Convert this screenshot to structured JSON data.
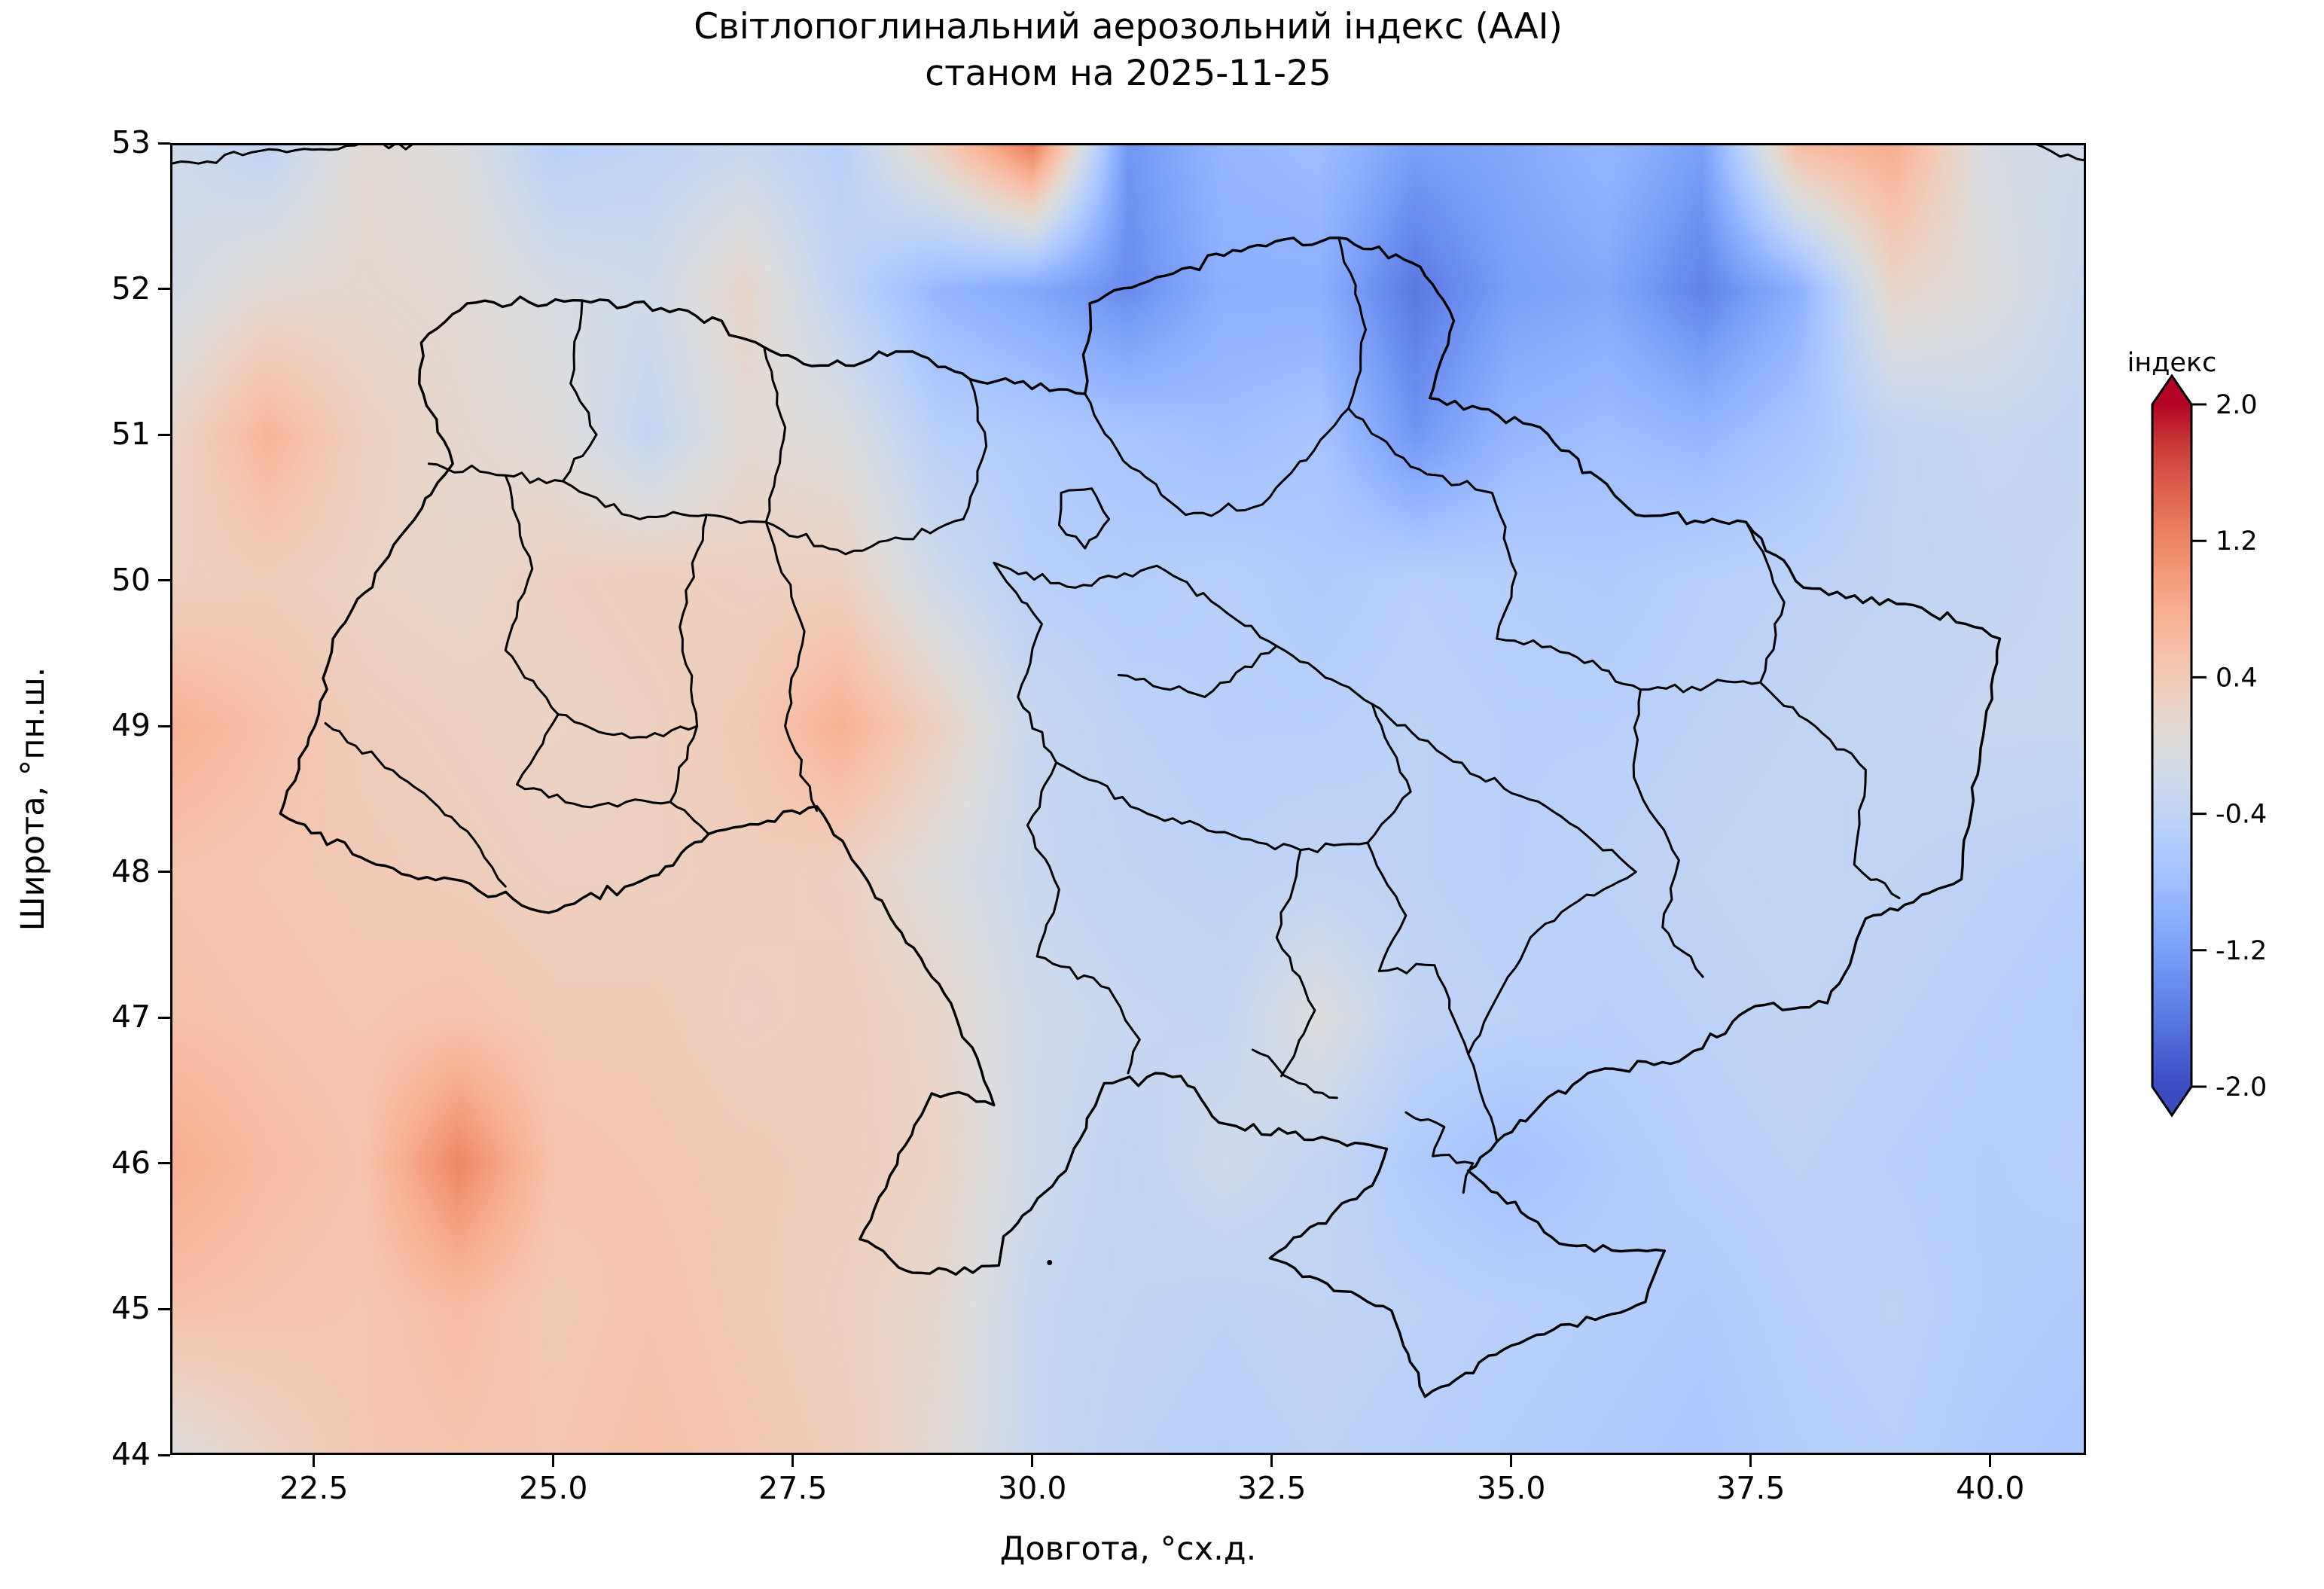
{
  "figure": {
    "title_line1": "Світлопоглинальний аерозольний індекс (AAI)",
    "title_line2": "станом на 2025-11-25",
    "background": "#ffffff"
  },
  "axes": {
    "xlabel": "Довгота, °сх.д.",
    "ylabel": "Широта, °пн.ш.",
    "xlim": [
      21,
      41
    ],
    "ylim": [
      44,
      53
    ],
    "xticks": [
      22.5,
      25.0,
      27.5,
      30.0,
      32.5,
      35.0,
      37.5,
      40.0
    ],
    "xtick_labels": [
      "22.5",
      "25.0",
      "27.5",
      "30.0",
      "32.5",
      "35.0",
      "37.5",
      "40.0"
    ],
    "yticks": [
      53,
      52,
      51,
      50,
      49,
      48,
      47,
      46,
      45,
      44
    ],
    "ytick_labels": [
      "53",
      "52",
      "51",
      "50",
      "49",
      "48",
      "47",
      "46",
      "45",
      "44"
    ]
  },
  "colorbar": {
    "title": "індекс",
    "vmin": -2.0,
    "vmax": 2.0,
    "tick_values": [
      2.0,
      1.2,
      0.4,
      -0.4,
      -1.2,
      -2.0
    ],
    "tick_labels": [
      "2.0",
      "1.2",
      "0.4",
      "-0.4",
      "-1.2",
      "-2.0"
    ],
    "extend": "both",
    "over_color": "#b40426",
    "under_color": "#3b4cc0",
    "colormap_name": "coolwarm",
    "colormap_anchors": [
      "#3b4cc0",
      "#4d68d7",
      "#6282ea",
      "#779af6",
      "#8db0fe",
      "#a3c2ff",
      "#b8d0f9",
      "#ccd9ee",
      "#dddddd",
      "#ecd3c5",
      "#f5c4ad",
      "#f7b194",
      "#f49a7a",
      "#ec7f63",
      "#de604d",
      "#cb3e38",
      "#b40426"
    ]
  },
  "chart_data": {
    "type": "heatmap",
    "title": "Світлопоглинальний аерозольний індекс (AAI) станом на 2025-11-25",
    "date": "2025-11-25",
    "variable": "AAI (absorbing aerosol index)",
    "xlabel": "Довгота, °сх.д.",
    "ylabel": "Широта, °пн.ш.",
    "x_lon": [
      21,
      22,
      23,
      24,
      25,
      26,
      27,
      28,
      29,
      30,
      31,
      32,
      33,
      34,
      35,
      36,
      37,
      38,
      39,
      40,
      41
    ],
    "y_lat": [
      53,
      52,
      51,
      50,
      49,
      48,
      47,
      46,
      45,
      44
    ],
    "values": [
      [
        -0.2,
        -0.4,
        0.1,
        0.0,
        -0.5,
        -0.4,
        -0.3,
        -0.5,
        0.3,
        1.3,
        -1.3,
        -0.9,
        -0.8,
        -1.2,
        -1.1,
        -0.9,
        -1.2,
        0.6,
        0.8,
        -0.1,
        -0.2
      ],
      [
        -0.15,
        0.1,
        0.15,
        0.1,
        -0.1,
        -0.2,
        0.2,
        -0.4,
        -0.9,
        -1.1,
        -1.4,
        -1.0,
        -1.0,
        -1.6,
        -1.2,
        -1.1,
        -1.5,
        -1.0,
        0.2,
        0.0,
        -0.3
      ],
      [
        0.2,
        0.7,
        0.3,
        0.15,
        0.05,
        -0.35,
        0.1,
        0.0,
        -0.5,
        -0.6,
        -0.7,
        -0.8,
        -0.7,
        -1.3,
        -0.9,
        -0.8,
        -0.9,
        -0.7,
        -0.4,
        -0.3,
        -0.35
      ],
      [
        0.3,
        0.35,
        0.25,
        0.2,
        0.3,
        0.35,
        0.3,
        0.3,
        -0.2,
        -0.5,
        -0.55,
        -0.5,
        -0.6,
        -0.5,
        -0.55,
        -0.6,
        -0.5,
        -0.45,
        -0.4,
        -0.35,
        -0.3
      ],
      [
        0.75,
        0.55,
        0.35,
        0.3,
        0.25,
        0.3,
        0.4,
        0.75,
        0.3,
        -0.3,
        -0.45,
        -0.5,
        -0.5,
        -0.45,
        -0.5,
        -0.5,
        -0.45,
        -0.4,
        -0.35,
        -0.3,
        -0.3
      ],
      [
        0.5,
        0.45,
        0.4,
        0.35,
        0.3,
        0.3,
        0.35,
        0.3,
        0.0,
        -0.3,
        -0.4,
        -0.45,
        -0.4,
        -0.45,
        -0.5,
        -0.45,
        -0.4,
        -0.35,
        -0.4,
        -0.45,
        -0.5
      ],
      [
        0.55,
        0.5,
        0.45,
        0.5,
        0.4,
        0.4,
        0.3,
        0.35,
        0.2,
        -0.2,
        -0.3,
        -0.35,
        0.0,
        -0.4,
        -0.45,
        -0.5,
        -0.45,
        -0.4,
        -0.45,
        -0.5,
        -0.55
      ],
      [
        0.8,
        0.6,
        0.5,
        1.2,
        0.5,
        0.45,
        0.4,
        0.35,
        0.25,
        -0.2,
        -0.4,
        -0.2,
        -0.35,
        -0.6,
        -0.75,
        -0.6,
        -0.5,
        -0.45,
        -0.5,
        -0.55,
        -0.5
      ],
      [
        0.55,
        0.5,
        0.45,
        0.6,
        0.4,
        0.5,
        0.4,
        0.3,
        0.15,
        -0.3,
        -0.4,
        -0.45,
        -0.4,
        -0.45,
        -0.5,
        -0.55,
        -0.6,
        -0.5,
        -0.45,
        -0.55,
        -0.6
      ],
      [
        0.0,
        0.25,
        0.45,
        0.5,
        0.45,
        0.55,
        0.45,
        0.35,
        0.1,
        -0.3,
        -0.45,
        -0.5,
        -0.45,
        -0.5,
        -0.55,
        -0.6,
        -0.65,
        -0.55,
        -0.5,
        -0.6,
        -0.65
      ]
    ],
    "map_overlay": {
      "outline": [
        [
          22.15,
          48.4
        ],
        [
          22.55,
          49.08
        ],
        [
          22.7,
          49.6
        ],
        [
          23.4,
          50.3
        ],
        [
          23.95,
          50.8
        ],
        [
          23.6,
          51.35
        ],
        [
          23.62,
          51.63
        ],
        [
          24.1,
          51.9
        ],
        [
          25.3,
          51.92
        ],
        [
          26.4,
          51.85
        ],
        [
          27.2,
          51.6
        ],
        [
          27.7,
          51.47
        ],
        [
          28.75,
          51.57
        ],
        [
          29.35,
          51.38
        ],
        [
          30.55,
          51.28
        ],
        [
          30.6,
          51.9
        ],
        [
          31.3,
          52.08
        ],
        [
          32.35,
          52.3
        ],
        [
          33.2,
          52.35
        ],
        [
          34.05,
          52.15
        ],
        [
          34.4,
          51.78
        ],
        [
          34.15,
          51.25
        ],
        [
          35.3,
          51.05
        ],
        [
          36.3,
          50.45
        ],
        [
          37.45,
          50.4
        ],
        [
          38.05,
          49.95
        ],
        [
          39.2,
          49.83
        ],
        [
          40.1,
          49.6
        ],
        [
          39.9,
          48.85
        ],
        [
          39.7,
          47.95
        ],
        [
          38.7,
          47.68
        ],
        [
          38.3,
          47.1
        ],
        [
          37.55,
          47.08
        ],
        [
          36.75,
          46.7
        ],
        [
          35.8,
          46.62
        ],
        [
          34.85,
          46.15
        ],
        [
          34.55,
          45.95
        ],
        [
          35.5,
          45.45
        ],
        [
          36.6,
          45.4
        ],
        [
          36.4,
          45.05
        ],
        [
          35.0,
          44.75
        ],
        [
          34.1,
          44.4
        ],
        [
          33.75,
          44.99
        ],
        [
          32.48,
          45.35
        ],
        [
          33.55,
          45.85
        ],
        [
          33.7,
          46.1
        ],
        [
          33.2,
          46.15
        ],
        [
          31.95,
          46.28
        ],
        [
          31.55,
          46.6
        ],
        [
          30.75,
          46.55
        ],
        [
          30.35,
          45.95
        ],
        [
          29.7,
          45.5
        ],
        [
          29.65,
          45.3
        ],
        [
          28.75,
          45.25
        ],
        [
          28.2,
          45.48
        ],
        [
          28.95,
          46.48
        ],
        [
          29.6,
          46.4
        ],
        [
          29.15,
          47.1
        ],
        [
          27.75,
          48.45
        ],
        [
          26.62,
          48.26
        ],
        [
          26.1,
          47.98
        ],
        [
          24.95,
          47.72
        ],
        [
          23.95,
          47.95
        ],
        [
          23.15,
          48.05
        ]
      ],
      "internal": [
        [
          [
            25.3,
            51.92
          ],
          [
            25.18,
            51.35
          ],
          [
            25.45,
            51.0
          ],
          [
            25.1,
            50.68
          ]
        ],
        [
          [
            23.7,
            50.8
          ],
          [
            24.5,
            50.72
          ],
          [
            25.1,
            50.68
          ],
          [
            25.9,
            50.42
          ],
          [
            26.6,
            50.45
          ],
          [
            27.22,
            50.4
          ]
        ],
        [
          [
            27.2,
            51.6
          ],
          [
            27.42,
            51.05
          ],
          [
            27.22,
            50.4
          ]
        ],
        [
          [
            29.35,
            51.38
          ],
          [
            29.52,
            50.92
          ],
          [
            29.28,
            50.42
          ]
        ],
        [
          [
            27.22,
            50.4
          ],
          [
            28.05,
            50.18
          ],
          [
            29.28,
            50.42
          ]
        ],
        [
          [
            24.5,
            50.72
          ],
          [
            24.78,
            50.08
          ],
          [
            24.5,
            49.52
          ],
          [
            25.05,
            49.08
          ],
          [
            24.62,
            48.6
          ]
        ],
        [
          [
            26.6,
            50.45
          ],
          [
            26.32,
            49.68
          ],
          [
            26.5,
            49.0
          ],
          [
            26.22,
            48.48
          ]
        ],
        [
          [
            27.22,
            50.4
          ],
          [
            27.62,
            49.65
          ],
          [
            27.42,
            49.0
          ],
          [
            27.75,
            48.42
          ]
        ],
        [
          [
            25.05,
            49.08
          ],
          [
            25.8,
            48.92
          ],
          [
            26.5,
            49.0
          ]
        ],
        [
          [
            24.62,
            48.6
          ],
          [
            25.3,
            48.45
          ],
          [
            26.22,
            48.48
          ],
          [
            26.62,
            48.26
          ]
        ],
        [
          [
            22.62,
            49.02
          ],
          [
            23.4,
            48.65
          ],
          [
            24.1,
            48.28
          ],
          [
            24.5,
            47.9
          ]
        ],
        [
          [
            29.6,
            50.12
          ],
          [
            30.1,
            49.7
          ],
          [
            29.85,
            49.2
          ],
          [
            30.25,
            48.75
          ],
          [
            29.95,
            48.32
          ],
          [
            30.28,
            47.88
          ],
          [
            30.05,
            47.42
          ]
        ],
        [
          [
            29.6,
            50.12
          ],
          [
            30.45,
            49.95
          ],
          [
            31.3,
            50.1
          ],
          [
            31.95,
            49.82
          ]
        ],
        [
          [
            31.95,
            49.82
          ],
          [
            32.55,
            49.55
          ],
          [
            33.55,
            49.15
          ],
          [
            34.3,
            48.8
          ],
          [
            35.1,
            48.52
          ],
          [
            35.7,
            48.3
          ],
          [
            36.3,
            48.0
          ]
        ],
        [
          [
            30.55,
            51.28
          ],
          [
            30.95,
            50.82
          ],
          [
            31.6,
            50.45
          ],
          [
            32.4,
            50.52
          ],
          [
            33.3,
            51.18
          ]
        ],
        [
          [
            33.2,
            52.35
          ],
          [
            33.48,
            51.72
          ],
          [
            33.3,
            51.18
          ],
          [
            33.95,
            50.78
          ]
        ],
        [
          [
            33.95,
            50.78
          ],
          [
            34.8,
            50.6
          ],
          [
            35.05,
            50.05
          ],
          [
            34.85,
            49.6
          ]
        ],
        [
          [
            34.85,
            49.6
          ],
          [
            35.6,
            49.5
          ],
          [
            36.35,
            49.25
          ],
          [
            37.6,
            49.3
          ]
        ],
        [
          [
            37.45,
            50.4
          ],
          [
            37.85,
            49.85
          ],
          [
            37.6,
            49.3
          ]
        ],
        [
          [
            37.6,
            49.3
          ],
          [
            38.25,
            48.95
          ],
          [
            38.7,
            48.7
          ],
          [
            38.58,
            48.05
          ],
          [
            39.05,
            47.82
          ]
        ],
        [
          [
            36.35,
            49.25
          ],
          [
            36.28,
            48.65
          ],
          [
            36.75,
            48.08
          ],
          [
            36.58,
            47.62
          ],
          [
            37.0,
            47.28
          ]
        ],
        [
          [
            36.3,
            48.0
          ],
          [
            35.7,
            47.8
          ],
          [
            35.2,
            47.55
          ],
          [
            34.9,
            47.2
          ],
          [
            34.55,
            46.75
          ],
          [
            34.85,
            46.15
          ]
        ],
        [
          [
            30.9,
            49.35
          ],
          [
            31.8,
            49.2
          ],
          [
            32.55,
            49.55
          ]
        ],
        [
          [
            30.25,
            48.75
          ],
          [
            31.2,
            48.4
          ],
          [
            32.1,
            48.25
          ],
          [
            32.8,
            48.15
          ],
          [
            33.5,
            48.2
          ]
        ],
        [
          [
            32.8,
            48.15
          ],
          [
            32.55,
            47.55
          ],
          [
            32.95,
            47.05
          ],
          [
            32.6,
            46.6
          ]
        ],
        [
          [
            33.55,
            49.15
          ],
          [
            33.95,
            48.55
          ],
          [
            33.5,
            48.2
          ],
          [
            33.9,
            47.7
          ],
          [
            33.62,
            47.32
          ],
          [
            34.2,
            47.36
          ],
          [
            34.55,
            46.75
          ]
        ],
        [
          [
            30.05,
            47.42
          ],
          [
            30.8,
            47.2
          ],
          [
            31.12,
            46.85
          ],
          [
            31.0,
            46.62
          ]
        ],
        [
          [
            30.3,
            50.6
          ],
          [
            30.62,
            50.63
          ],
          [
            30.8,
            50.42
          ],
          [
            30.55,
            50.22
          ],
          [
            30.28,
            50.38
          ],
          [
            30.3,
            50.6
          ]
        ],
        [
          [
            33.9,
            46.35
          ],
          [
            34.3,
            46.25
          ],
          [
            34.18,
            46.05
          ],
          [
            34.6,
            46.0
          ],
          [
            34.5,
            45.8
          ]
        ],
        [
          [
            32.3,
            46.78
          ],
          [
            32.7,
            46.58
          ],
          [
            33.18,
            46.45
          ]
        ],
        [
          [
            21.02,
            52.86
          ],
          [
            22.4,
            52.96
          ],
          [
            23.9,
            53.0
          ]
        ],
        [
          [
            40.45,
            53.0
          ],
          [
            41.0,
            52.88
          ]
        ]
      ],
      "island_points": [
        [
          30.18,
          45.32
        ]
      ]
    }
  }
}
